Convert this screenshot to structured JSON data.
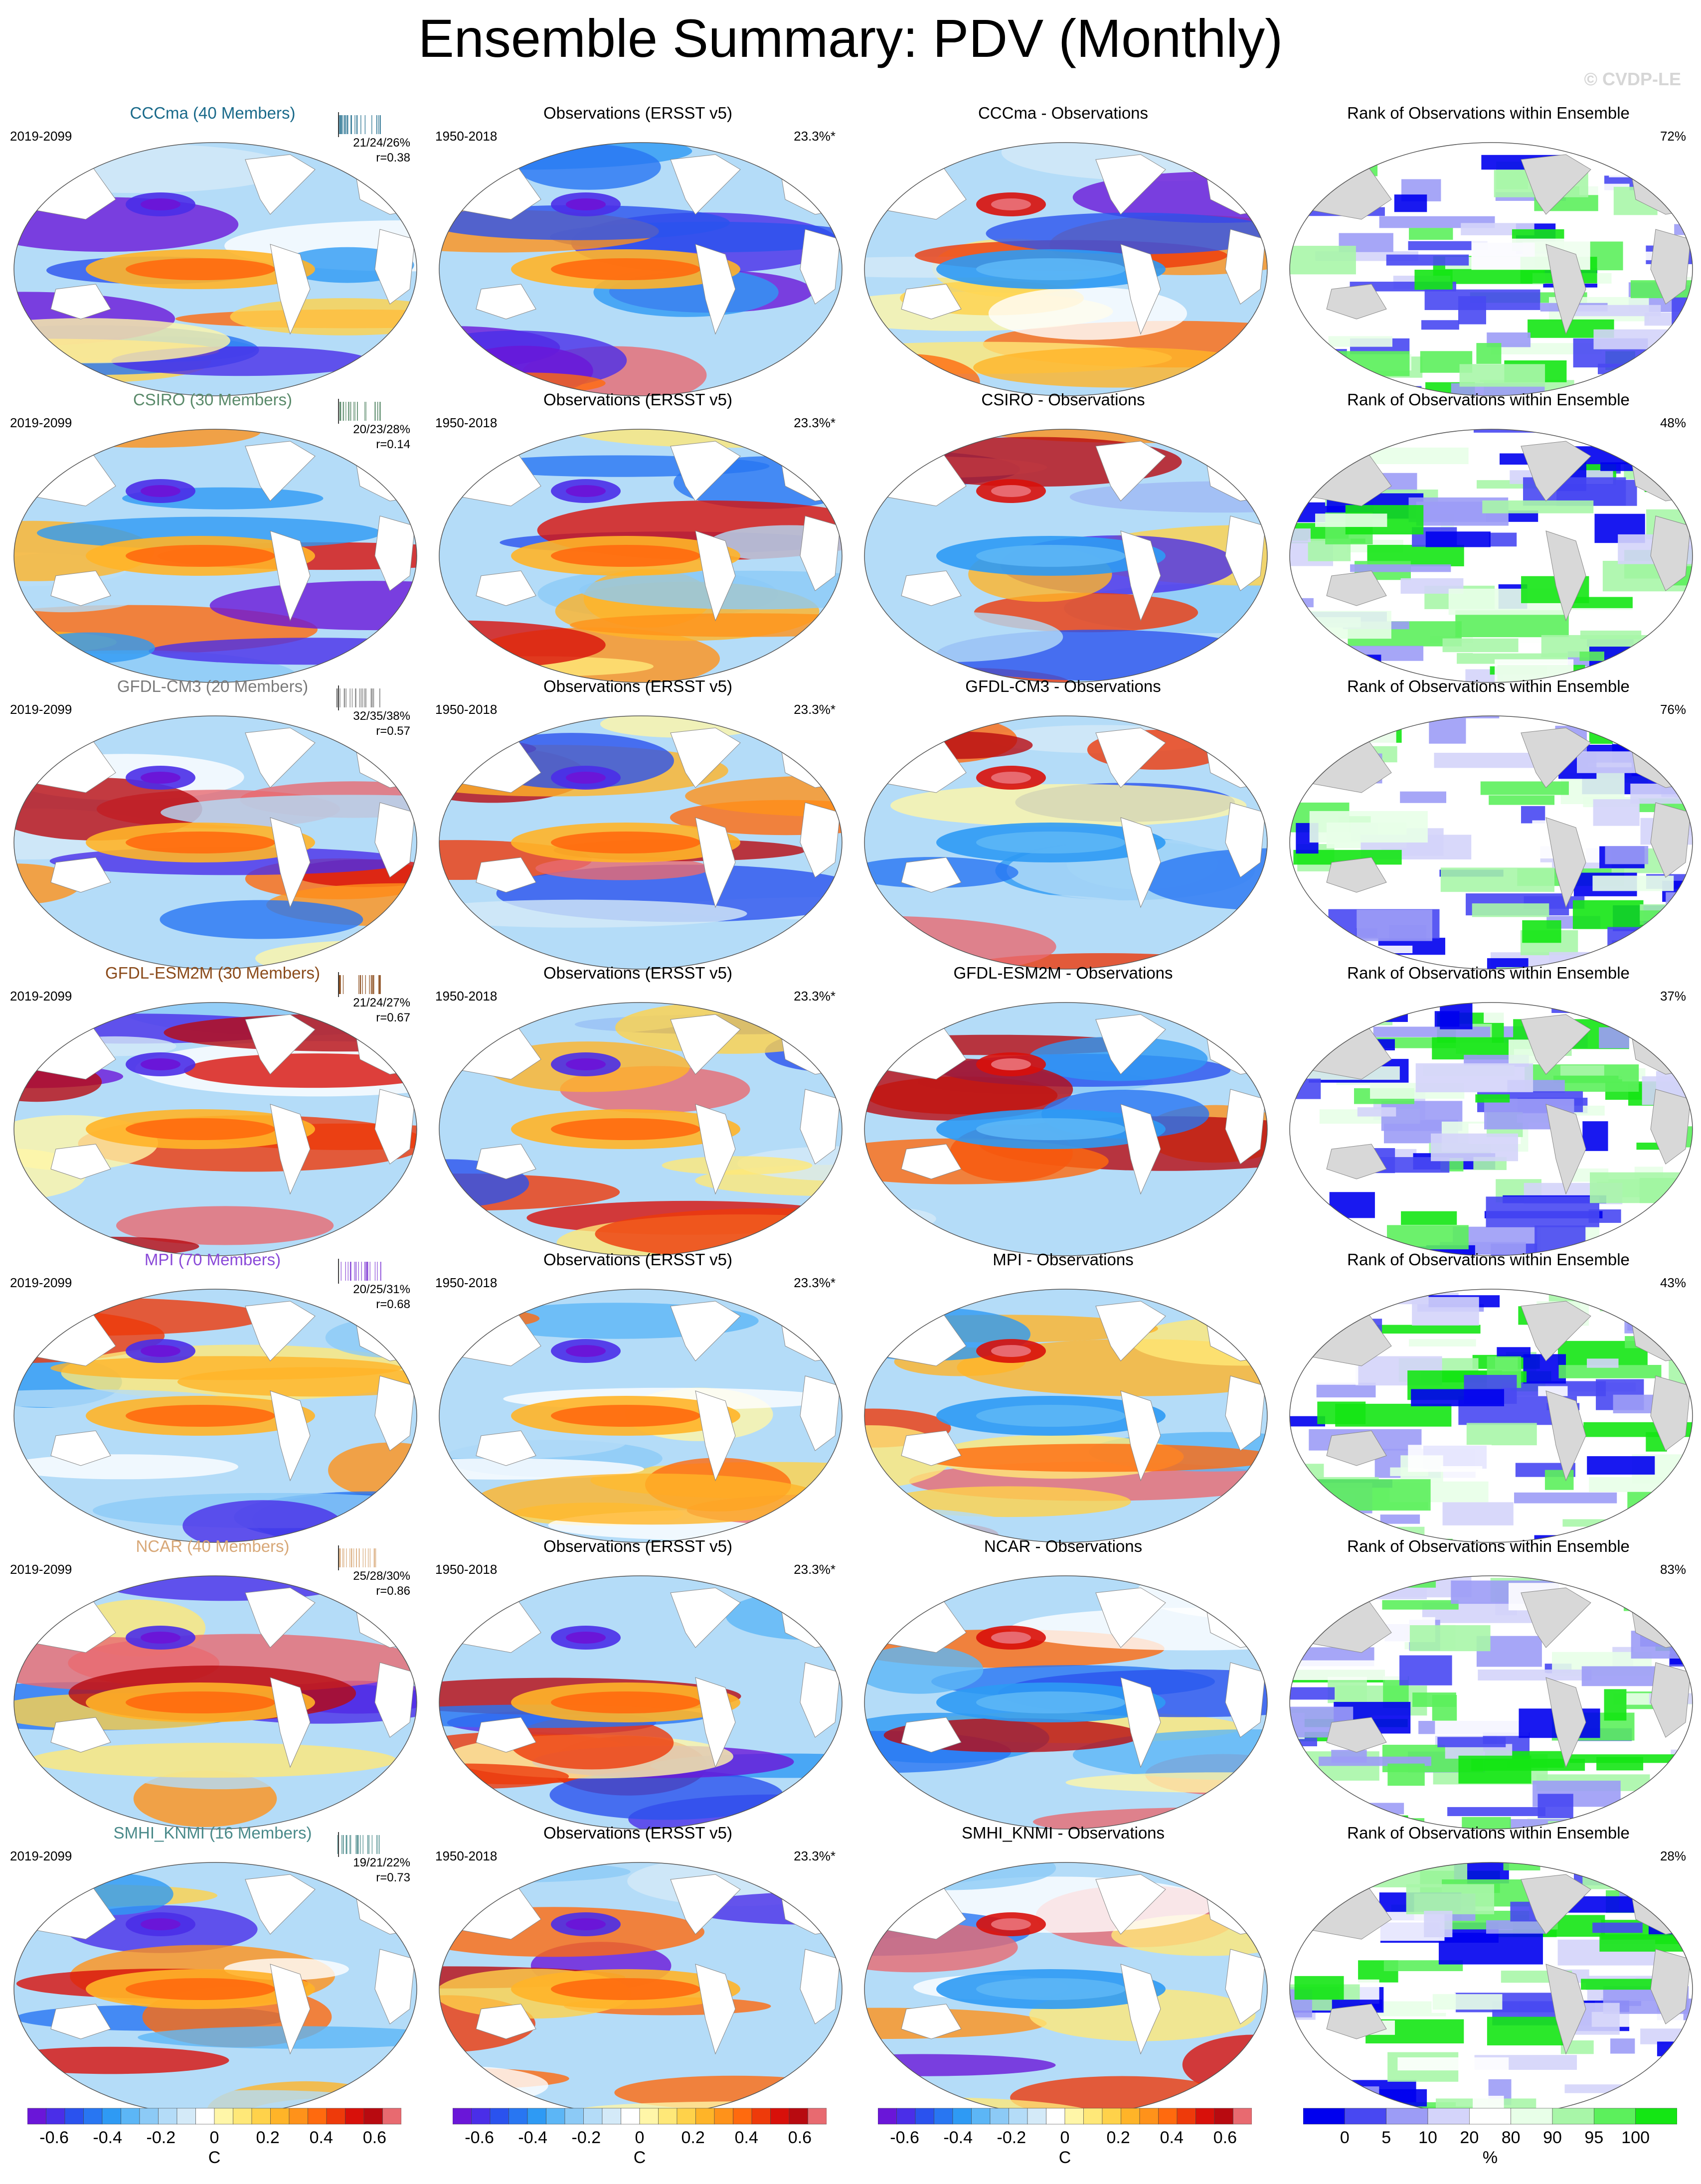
{
  "title": "Ensemble Summary: PDV (Monthly)",
  "watermark": "© CVDP-LE",
  "colors": {
    "diverging": [
      "#6a16d8",
      "#4a2ee8",
      "#2a52ee",
      "#2876f2",
      "#2e9af4",
      "#5cb6f6",
      "#8ccaf6",
      "#b4dcf8",
      "#d4eaf8",
      "#ffffff",
      "#fff6a8",
      "#ffe878",
      "#ffd24a",
      "#ffb428",
      "#ff921a",
      "#ff6a0e",
      "#ee3a0a",
      "#d8100a",
      "#b80a10",
      "#e86a70"
    ],
    "rank": [
      "#0000ee",
      "#4848f2",
      "#9c9cf6",
      "#d4d4fa",
      "#ffffff",
      "#e8ffe8",
      "#a8f6a8",
      "#5cf05c",
      "#14e614"
    ],
    "land": "#d8d8d8"
  },
  "columns": [
    {
      "type": "model"
    },
    {
      "type": "obs"
    },
    {
      "type": "diff"
    },
    {
      "type": "rank"
    }
  ],
  "rows": [
    {
      "model_title": "CCCma (40 Members)",
      "model_color": "#1a6a8a",
      "model_period": "2019-2099",
      "stats": "21/24/26%",
      "r": "r=0.38",
      "obs_title": "Observations (ERSST v5)",
      "obs_period": "1950-2018",
      "obs_pct": "23.3%*",
      "diff_title": "CCCma - Observations",
      "rank_title": "Rank of Observations within Ensemble",
      "rank_pct": "72%"
    },
    {
      "model_title": "CSIRO (30 Members)",
      "model_color": "#5a8a6a",
      "model_period": "2019-2099",
      "stats": "20/23/28%",
      "r": "r=0.14",
      "obs_title": "Observations (ERSST v5)",
      "obs_period": "1950-2018",
      "obs_pct": "23.3%*",
      "diff_title": "CSIRO - Observations",
      "rank_title": "Rank of Observations within Ensemble",
      "rank_pct": "48%"
    },
    {
      "model_title": "GFDL-CM3 (20 Members)",
      "model_color": "#7a7a7a",
      "model_period": "2019-2099",
      "stats": "32/35/38%",
      "r": "r=0.57",
      "obs_title": "Observations (ERSST v5)",
      "obs_period": "1950-2018",
      "obs_pct": "23.3%*",
      "diff_title": "GFDL-CM3 - Observations",
      "rank_title": "Rank of Observations within Ensemble",
      "rank_pct": "76%"
    },
    {
      "model_title": "GFDL-ESM2M (30 Members)",
      "model_color": "#8a4a1a",
      "model_period": "2019-2099",
      "stats": "21/24/27%",
      "r": "r=0.67",
      "obs_title": "Observations (ERSST v5)",
      "obs_period": "1950-2018",
      "obs_pct": "23.3%*",
      "diff_title": "GFDL-ESM2M - Observations",
      "rank_title": "Rank of Observations within Ensemble",
      "rank_pct": "37%"
    },
    {
      "model_title": "MPI (70 Members)",
      "model_color": "#8a4ad8",
      "model_period": "2019-2099",
      "stats": "20/25/31%",
      "r": "r=0.68",
      "obs_title": "Observations (ERSST v5)",
      "obs_period": "1950-2018",
      "obs_pct": "23.3%*",
      "diff_title": "MPI - Observations",
      "rank_title": "Rank of Observations within Ensemble",
      "rank_pct": "43%"
    },
    {
      "model_title": "NCAR (40 Members)",
      "model_color": "#d8a878",
      "model_period": "2019-2099",
      "stats": "25/28/30%",
      "r": "r=0.86",
      "obs_title": "Observations (ERSST v5)",
      "obs_period": "1950-2018",
      "obs_pct": "23.3%*",
      "diff_title": "NCAR - Observations",
      "rank_title": "Rank of Observations within Ensemble",
      "rank_pct": "83%"
    },
    {
      "model_title": "SMHI_KNMI (16 Members)",
      "model_color": "#4a8a8a",
      "model_period": "2019-2099",
      "stats": "19/21/22%",
      "r": "r=0.73",
      "obs_title": "Observations (ERSST v5)",
      "obs_period": "1950-2018",
      "obs_pct": "23.3%*",
      "diff_title": "SMHI_KNMI - Observations",
      "rank_title": "Rank of Observations within Ensemble",
      "rank_pct": "28%"
    }
  ],
  "colorbars": [
    {
      "ticks": [
        "-0.6",
        "-0.4",
        "-0.2",
        "0",
        "0.2",
        "0.4",
        "0.6"
      ],
      "unit": "C"
    },
    {
      "ticks": [
        "-0.6",
        "-0.4",
        "-0.2",
        "0",
        "0.2",
        "0.4",
        "0.6"
      ],
      "unit": "C"
    },
    {
      "ticks": [
        "-0.6",
        "-0.4",
        "-0.2",
        "0",
        "0.2",
        "0.4",
        "0.6"
      ],
      "unit": "C"
    },
    {
      "ticks": [
        "0",
        "5",
        "10",
        "20",
        "80",
        "90",
        "95",
        "100"
      ],
      "unit": "%"
    }
  ],
  "chart_data": {
    "type": "heatmap",
    "title": "Ensemble Summary: PDV (Monthly)",
    "panel_rows": 7,
    "panel_columns": 4,
    "colorbar_range_C": [
      -0.6,
      0.6
    ],
    "rank_levels_percent": [
      0,
      5,
      10,
      20,
      80,
      90,
      95,
      100
    ],
    "summary_stats": [
      {
        "model": "CCCma",
        "pct_variance": [
          21,
          24,
          26
        ],
        "r": 0.38,
        "rank_pct": 72
      },
      {
        "model": "CSIRO",
        "pct_variance": [
          20,
          23,
          28
        ],
        "r": 0.14,
        "rank_pct": 48
      },
      {
        "model": "GFDL-CM3",
        "pct_variance": [
          32,
          35,
          38
        ],
        "r": 0.57,
        "rank_pct": 76
      },
      {
        "model": "GFDL-ESM2M",
        "pct_variance": [
          21,
          24,
          27
        ],
        "r": 0.67,
        "rank_pct": 37
      },
      {
        "model": "MPI",
        "pct_variance": [
          20,
          25,
          31
        ],
        "r": 0.68,
        "rank_pct": 43
      },
      {
        "model": "NCAR",
        "pct_variance": [
          25,
          28,
          30
        ],
        "r": 0.86,
        "rank_pct": 83
      },
      {
        "model": "SMHI_KNMI",
        "pct_variance": [
          19,
          21,
          22
        ],
        "r": 0.73,
        "rank_pct": 28
      }
    ],
    "observations_pct_variance": 23.3
  }
}
